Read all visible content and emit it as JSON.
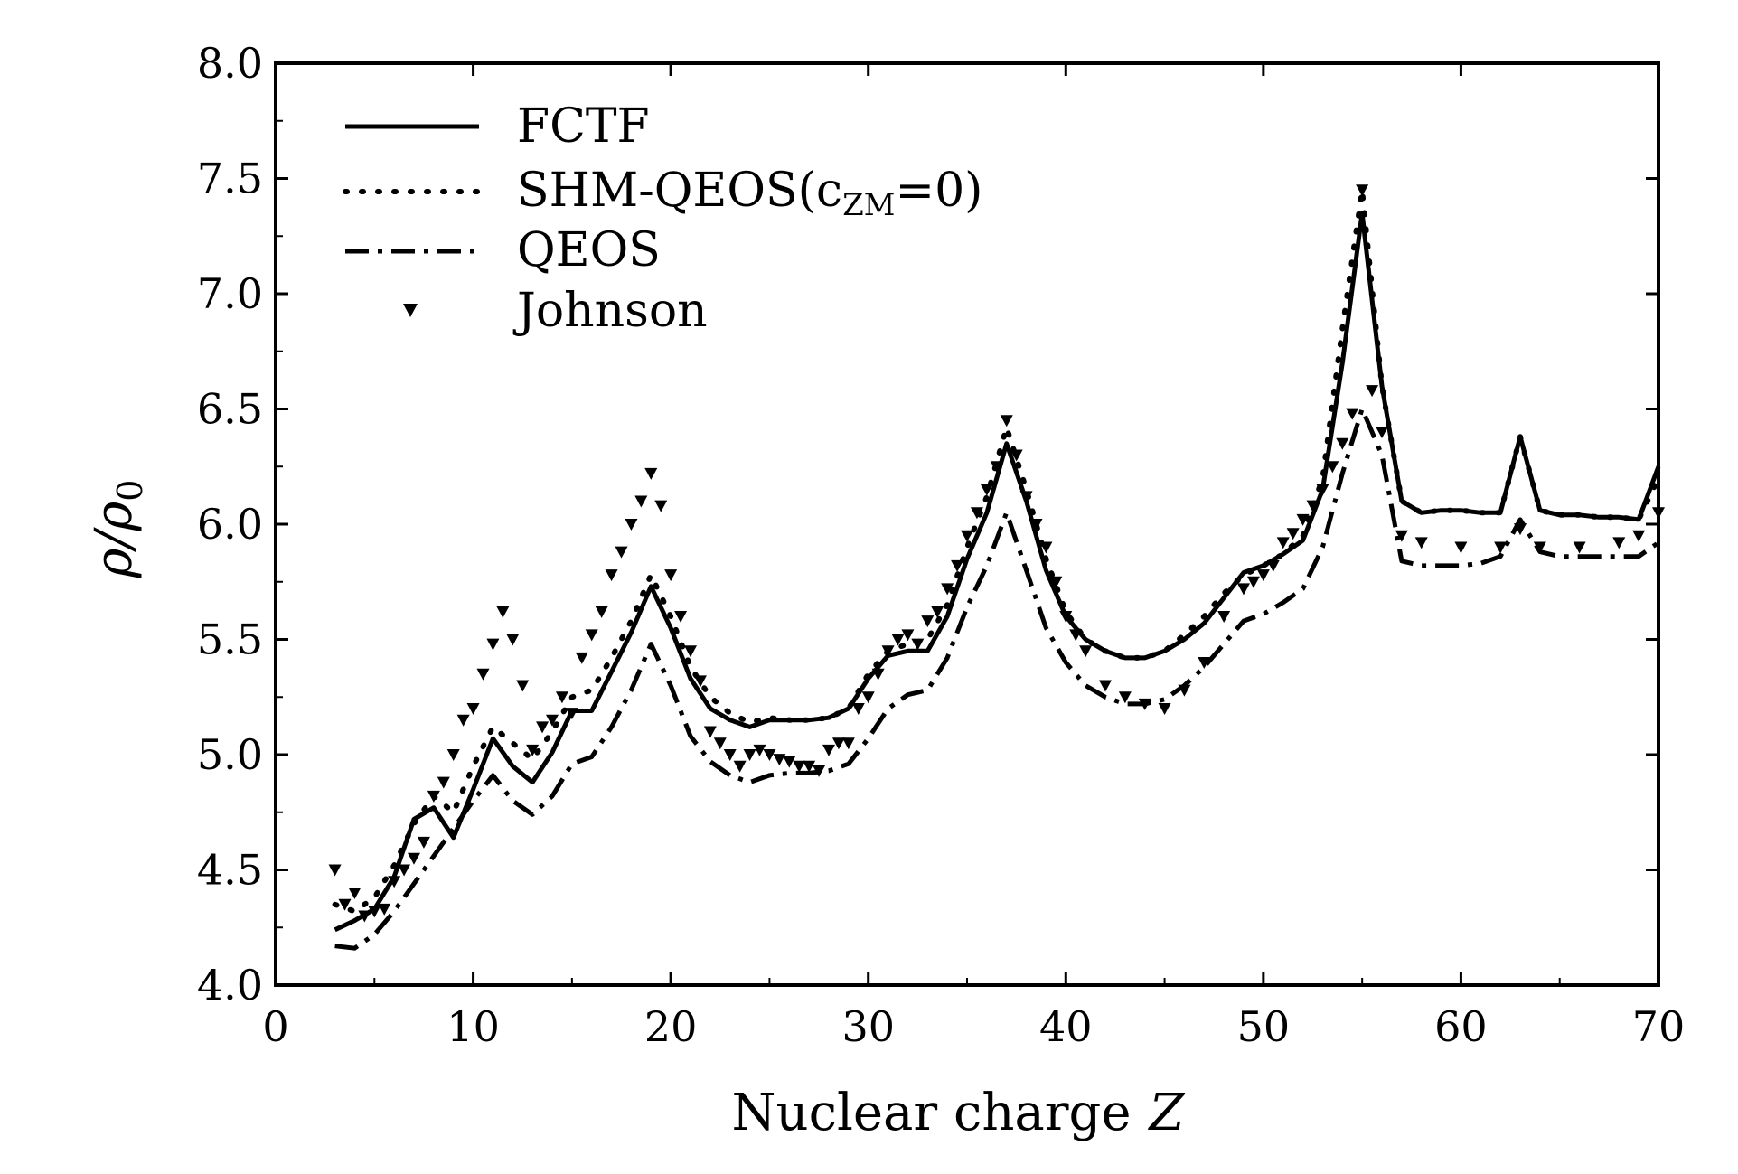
{
  "chart_data": {
    "type": "line",
    "title": "",
    "xlabel": "Nuclear charge",
    "xlabel_var": "Z",
    "ylabel": "ρ/ρ",
    "ylabel_sub": "0",
    "xlim": [
      0,
      70
    ],
    "ylim": [
      4.0,
      8.0
    ],
    "xticks": [
      0,
      10,
      20,
      30,
      40,
      50,
      60,
      70
    ],
    "yticks": [
      4.0,
      4.5,
      5.0,
      5.5,
      6.0,
      6.5,
      7.0,
      7.5,
      8.0
    ],
    "xtick_labels": [
      "0",
      "10",
      "20",
      "30",
      "40",
      "50",
      "60",
      "70"
    ],
    "ytick_labels": [
      "4.0",
      "4.5",
      "5.0",
      "5.5",
      "6.0",
      "6.5",
      "7.0",
      "7.5",
      "8.0"
    ],
    "legend_position": "top-left",
    "series": [
      {
        "name": "FCTF",
        "style": "solid",
        "x": [
          3,
          4,
          5,
          6,
          7,
          8,
          9,
          10,
          11,
          12,
          13,
          14,
          15,
          16,
          17,
          18,
          19,
          20,
          21,
          22,
          23,
          24,
          25,
          26,
          27,
          28,
          29,
          30,
          31,
          32,
          33,
          34,
          35,
          36,
          37,
          38,
          39,
          40,
          41,
          42,
          43,
          44,
          45,
          46,
          47,
          48,
          49,
          50,
          51,
          52,
          53,
          54,
          55,
          56,
          57,
          58,
          59,
          60,
          61,
          62,
          63,
          64,
          65,
          66,
          67,
          68,
          69,
          70
        ],
        "values": [
          4.24,
          4.28,
          4.33,
          4.47,
          4.72,
          4.77,
          4.64,
          4.85,
          5.07,
          4.95,
          4.88,
          5.01,
          5.19,
          5.19,
          5.36,
          5.53,
          5.73,
          5.55,
          5.33,
          5.2,
          5.15,
          5.12,
          5.15,
          5.15,
          5.15,
          5.16,
          5.2,
          5.33,
          5.43,
          5.45,
          5.45,
          5.6,
          5.85,
          6.05,
          6.35,
          6.1,
          5.8,
          5.6,
          5.5,
          5.45,
          5.42,
          5.42,
          5.45,
          5.5,
          5.57,
          5.68,
          5.79,
          5.82,
          5.87,
          5.93,
          6.15,
          6.7,
          7.35,
          6.6,
          6.1,
          6.05,
          6.06,
          6.06,
          6.05,
          6.05,
          6.38,
          6.06,
          6.04,
          6.04,
          6.03,
          6.03,
          6.02,
          6.25
        ]
      },
      {
        "name": "SHM-QEOS",
        "name_suffix": "(c",
        "name_sub": "ZM",
        "name_tail": "=0)",
        "style": "dotted",
        "x": [
          3,
          4,
          5,
          6,
          7,
          8,
          9,
          10,
          11,
          12,
          13,
          14,
          15,
          16,
          17,
          18,
          19,
          20,
          21,
          22,
          23,
          24,
          25,
          26,
          27,
          28,
          29,
          30,
          31,
          32,
          33,
          34,
          35,
          36,
          37,
          38,
          39,
          40,
          41,
          42,
          43,
          44,
          45,
          46,
          47,
          48,
          49,
          50,
          51,
          52,
          53,
          54,
          55,
          56,
          57,
          58,
          59,
          60,
          61,
          62,
          63,
          64,
          65,
          66,
          67,
          68,
          69,
          70
        ],
        "values": [
          4.35,
          4.32,
          4.38,
          4.52,
          4.7,
          4.82,
          4.75,
          4.95,
          5.12,
          5.05,
          4.98,
          5.1,
          5.25,
          5.28,
          5.42,
          5.58,
          5.78,
          5.6,
          5.38,
          5.25,
          5.18,
          5.14,
          5.16,
          5.15,
          5.15,
          5.16,
          5.2,
          5.35,
          5.45,
          5.48,
          5.5,
          5.65,
          5.9,
          6.12,
          6.42,
          6.15,
          5.85,
          5.62,
          5.5,
          5.45,
          5.42,
          5.42,
          5.45,
          5.52,
          5.6,
          5.7,
          5.78,
          5.82,
          5.87,
          5.95,
          6.2,
          6.85,
          7.45,
          6.6,
          6.1,
          6.05,
          6.06,
          6.06,
          6.05,
          6.05,
          6.38,
          6.06,
          6.04,
          6.04,
          6.03,
          6.03,
          6.02,
          6.2
        ]
      },
      {
        "name": "QEOS",
        "style": "dashdot",
        "x": [
          3,
          4,
          5,
          6,
          7,
          8,
          9,
          10,
          11,
          12,
          13,
          14,
          15,
          16,
          17,
          18,
          19,
          20,
          21,
          22,
          23,
          24,
          25,
          26,
          27,
          28,
          29,
          30,
          31,
          32,
          33,
          34,
          35,
          36,
          37,
          38,
          39,
          40,
          41,
          42,
          43,
          44,
          45,
          46,
          47,
          48,
          49,
          50,
          51,
          52,
          53,
          54,
          55,
          56,
          57,
          58,
          59,
          60,
          61,
          62,
          63,
          64,
          65,
          66,
          67,
          68,
          69,
          70
        ],
        "values": [
          4.17,
          4.16,
          4.22,
          4.32,
          4.44,
          4.56,
          4.68,
          4.8,
          4.91,
          4.8,
          4.74,
          4.82,
          4.96,
          4.99,
          5.12,
          5.28,
          5.48,
          5.3,
          5.08,
          4.97,
          4.91,
          4.88,
          4.91,
          4.92,
          4.92,
          4.93,
          4.96,
          5.07,
          5.2,
          5.26,
          5.28,
          5.42,
          5.64,
          5.82,
          6.05,
          5.8,
          5.55,
          5.4,
          5.3,
          5.25,
          5.22,
          5.22,
          5.24,
          5.3,
          5.38,
          5.48,
          5.58,
          5.61,
          5.66,
          5.72,
          5.9,
          6.22,
          6.5,
          6.3,
          5.84,
          5.82,
          5.82,
          5.82,
          5.83,
          5.86,
          6.02,
          5.88,
          5.86,
          5.86,
          5.86,
          5.86,
          5.86,
          5.92
        ]
      },
      {
        "name": "Johnson",
        "style": "markers",
        "marker": "triangle-down",
        "x": [
          3,
          3.5,
          4,
          4.5,
          5,
          5.5,
          6,
          6.5,
          7,
          7.5,
          8,
          8.5,
          9,
          9.5,
          10,
          10.5,
          11,
          11.5,
          12,
          12.5,
          13,
          13.5,
          14,
          14.5,
          15,
          15.5,
          16,
          16.5,
          17,
          17.5,
          18,
          18.5,
          19,
          19.5,
          20,
          20.5,
          21,
          21.5,
          22,
          22.5,
          23,
          23.5,
          24,
          24.5,
          25,
          25.5,
          26,
          26.5,
          27,
          27.5,
          28,
          28.5,
          29,
          29.5,
          30,
          30.5,
          31,
          31.5,
          32,
          32.5,
          33,
          33.5,
          34,
          34.5,
          35,
          35.5,
          36,
          36.5,
          37,
          37.5,
          38,
          38.5,
          39,
          39.5,
          40,
          40.5,
          41,
          42,
          43,
          44,
          45,
          46,
          47,
          48,
          49,
          49.5,
          50,
          50.5,
          51,
          51.5,
          52,
          52.5,
          53,
          53.5,
          54,
          54.5,
          55,
          55.5,
          56,
          57,
          58,
          60,
          62,
          63,
          64,
          66,
          68,
          69,
          70
        ],
        "values": [
          4.5,
          4.35,
          4.4,
          4.3,
          4.32,
          4.33,
          4.45,
          4.5,
          4.55,
          4.62,
          4.82,
          4.88,
          5.0,
          5.15,
          5.2,
          5.35,
          5.48,
          5.62,
          5.5,
          5.3,
          5.02,
          5.12,
          5.15,
          5.25,
          5.18,
          5.42,
          5.52,
          5.62,
          5.78,
          5.88,
          6.0,
          6.1,
          6.22,
          6.08,
          5.78,
          5.6,
          5.45,
          5.32,
          5.1,
          5.05,
          5.0,
          4.95,
          5.0,
          5.02,
          5.0,
          4.98,
          4.97,
          4.95,
          4.95,
          4.93,
          5.02,
          5.05,
          5.05,
          5.2,
          5.25,
          5.35,
          5.45,
          5.5,
          5.52,
          5.48,
          5.58,
          5.62,
          5.72,
          5.82,
          5.95,
          6.05,
          6.15,
          6.25,
          6.45,
          6.3,
          6.12,
          6.0,
          5.9,
          5.75,
          5.6,
          5.52,
          5.45,
          5.3,
          5.25,
          5.22,
          5.2,
          5.28,
          5.4,
          5.6,
          5.72,
          5.75,
          5.78,
          5.82,
          5.92,
          5.96,
          6.02,
          6.08,
          6.15,
          6.25,
          6.35,
          6.48,
          7.45,
          6.58,
          6.4,
          5.95,
          5.92,
          5.9,
          5.9,
          5.98,
          5.9,
          5.9,
          5.92,
          5.95,
          6.05
        ]
      }
    ]
  }
}
